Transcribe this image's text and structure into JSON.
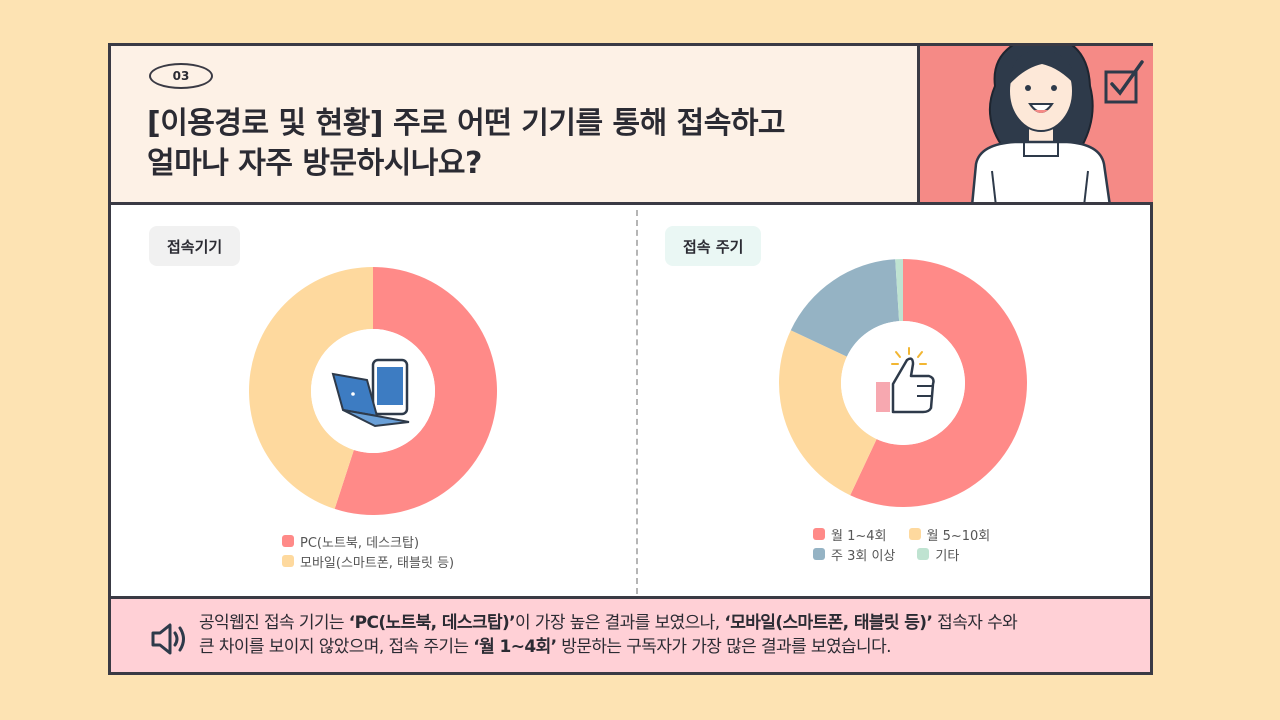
{
  "header": {
    "badge": "03",
    "title_line1": "[이용경로 및 현황] 주로 어떤 기기를 통해 접속하고",
    "title_line2": "얼마나 자주 방문하시나요?"
  },
  "left_panel": {
    "tag": "접속기기"
  },
  "right_panel": {
    "tag": "접속 주기"
  },
  "colors": {
    "red": "#ff8a88",
    "yellow": "#fed99e",
    "blue": "#95b3c4",
    "mint": "#bfe3d1",
    "frame": "#3a3a44",
    "footer_bg": "#ffd0d6",
    "page_bg": "#fde3b3"
  },
  "icons": {
    "left_center": "laptop-phone-icon",
    "right_center": "thumbs-up-icon",
    "footer": "speaker-icon",
    "header": "checkbox-icon"
  },
  "chart_data": [
    {
      "type": "pie",
      "variant": "donut",
      "categories": [
        "PC(노트북, 데스크탑)",
        "모바일(스마트폰, 태블릿 등)"
      ],
      "values": [
        55,
        45
      ],
      "colors": [
        "#ff8a88",
        "#fed99e"
      ],
      "legend_position": "bottom"
    },
    {
      "type": "pie",
      "variant": "donut",
      "categories": [
        "월 1~4회",
        "월 5~10회",
        "주 3회 이상",
        "기타"
      ],
      "values": [
        57,
        25,
        17,
        1
      ],
      "colors": [
        "#ff8a88",
        "#fed99e",
        "#95b3c4",
        "#bfe3d1"
      ],
      "legend_position": "bottom"
    }
  ],
  "footer": {
    "t1": "공익웹진 접속 기기는 ",
    "t2": "‘PC(노트북, 데스크탑)’",
    "t3": "이 가장 높은 결과를 보였으나, ",
    "t4": "‘모바일(스마트폰, 태블릿 등)’",
    "t5": " 접속자 수와",
    "t6": "큰 차이를 보이지 않았으며, 접속 주기는 ",
    "t7": "‘월 1~4회’",
    "t8": " 방문하는 구독자가 가장 많은 결과를 보였습니다."
  }
}
